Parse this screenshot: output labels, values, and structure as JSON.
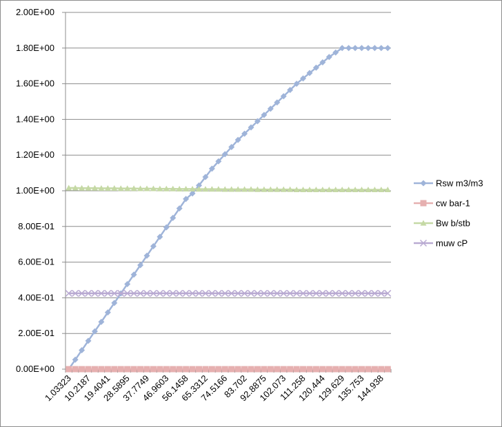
{
  "chart_data": {
    "type": "line",
    "title": "",
    "xlabel": "",
    "ylabel": "",
    "ylim": [
      0,
      2.0
    ],
    "yticks": [
      "0.00E+00",
      "2.00E-01",
      "4.00E-01",
      "6.00E-01",
      "8.00E-01",
      "1.00E+00",
      "1.20E+00",
      "1.40E+00",
      "1.60E+00",
      "1.80E+00",
      "2.00E+00"
    ],
    "xtick_labels": [
      "1.03323",
      "10.2187",
      "19.4041",
      "28.5895",
      "37.7749",
      "46.9603",
      "56.1458",
      "65.3312",
      "74.5166",
      "83.702",
      "92.8875",
      "102.073",
      "111.258",
      "120.444",
      "129.629",
      "135.753",
      "144.938"
    ],
    "xtick_indices": [
      0,
      3,
      6,
      9,
      12,
      15,
      18,
      21,
      24,
      27,
      30,
      33,
      36,
      39,
      42,
      45,
      48
    ],
    "n_points": 50,
    "grid": "horizontal",
    "legend_position": "right",
    "series": [
      {
        "name": "Rsw m3/m3",
        "color": "#9fb4d9",
        "marker": "diamond",
        "values": [
          0.0,
          0.053,
          0.106,
          0.159,
          0.212,
          0.265,
          0.318,
          0.371,
          0.424,
          0.477,
          0.53,
          0.583,
          0.636,
          0.689,
          0.742,
          0.795,
          0.848,
          0.901,
          0.954,
          0.985,
          1.03,
          1.077,
          1.124,
          1.165,
          1.205,
          1.245,
          1.285,
          1.32,
          1.355,
          1.39,
          1.425,
          1.46,
          1.495,
          1.53,
          1.565,
          1.6,
          1.63,
          1.66,
          1.69,
          1.72,
          1.75,
          1.775,
          1.8,
          1.8,
          1.8,
          1.8,
          1.8,
          1.8,
          1.8,
          1.8
        ]
      },
      {
        "name": "cw bar-1",
        "color": "#e6b0b0",
        "marker": "square",
        "values": [
          0.0,
          0.0,
          0.0,
          0.0,
          0.0,
          0.0,
          0.0,
          0.0,
          0.0,
          0.0,
          0.0,
          0.0,
          0.0,
          0.0,
          0.0,
          0.0,
          0.0,
          0.0,
          0.0,
          0.0,
          0.0,
          0.0,
          0.0,
          0.0,
          0.0,
          0.0,
          0.0,
          0.0,
          0.0,
          0.0,
          0.0,
          0.0,
          0.0,
          0.0,
          0.0,
          0.0,
          0.0,
          0.0,
          0.0,
          0.0,
          0.0,
          0.0,
          0.0,
          0.0,
          0.0,
          0.0,
          0.0,
          0.0,
          0.0,
          0.0
        ]
      },
      {
        "name": "Bw b/stb",
        "color": "#c5d9a5",
        "marker": "triangle",
        "values": [
          1.016,
          1.016,
          1.015,
          1.015,
          1.015,
          1.014,
          1.014,
          1.014,
          1.013,
          1.013,
          1.013,
          1.012,
          1.012,
          1.012,
          1.011,
          1.011,
          1.011,
          1.01,
          1.01,
          1.01,
          1.009,
          1.009,
          1.009,
          1.009,
          1.008,
          1.008,
          1.008,
          1.008,
          1.008,
          1.007,
          1.007,
          1.007,
          1.007,
          1.007,
          1.007,
          1.006,
          1.006,
          1.006,
          1.006,
          1.006,
          1.006,
          1.006,
          1.006,
          1.006,
          1.006,
          1.006,
          1.006,
          1.006,
          1.006,
          1.006
        ]
      },
      {
        "name": "muw cP",
        "color": "#b9aad2",
        "marker": "x",
        "values": [
          0.425,
          0.425,
          0.425,
          0.425,
          0.425,
          0.425,
          0.425,
          0.425,
          0.425,
          0.425,
          0.425,
          0.425,
          0.425,
          0.425,
          0.425,
          0.425,
          0.425,
          0.425,
          0.425,
          0.425,
          0.425,
          0.425,
          0.425,
          0.425,
          0.425,
          0.425,
          0.425,
          0.425,
          0.425,
          0.425,
          0.425,
          0.425,
          0.425,
          0.425,
          0.425,
          0.425,
          0.425,
          0.425,
          0.425,
          0.425,
          0.425,
          0.425,
          0.425,
          0.425,
          0.425,
          0.425,
          0.425,
          0.425,
          0.425,
          0.425
        ]
      }
    ]
  }
}
